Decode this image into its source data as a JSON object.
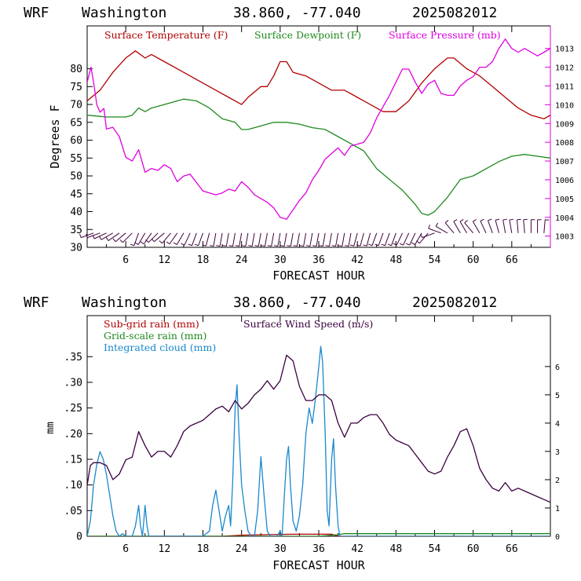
{
  "colors": {
    "temperature": "#b00000",
    "dewpoint": "#1e8a1e",
    "pressure": "#e000e0",
    "wind_barb": "#40003a",
    "subgrid_rain": "#b00000",
    "gridscale_rain": "#1e8a1e",
    "cloud": "#1a88cc",
    "wind_speed": "#3a0040",
    "axis": "#000000"
  },
  "chart_data": [
    {
      "type": "line",
      "title_model": "WRF",
      "title_location": "Washington",
      "title_coords": "38.860, -77.040",
      "title_date": "2025082012",
      "xlabel": "FORECAST HOUR",
      "ylabel": "Degrees F",
      "xlim": [
        0,
        72
      ],
      "ylim": [
        30,
        92
      ],
      "y2lim": [
        1002.4,
        1014.2
      ],
      "xticks": [
        "6",
        "12",
        "18",
        "24",
        "30",
        "36",
        "42",
        "48",
        "54",
        "60",
        "66"
      ],
      "yticks": [
        "30",
        "35",
        "40",
        "45",
        "50",
        "55",
        "60",
        "65",
        "70",
        "75",
        "80"
      ],
      "y2ticks": [
        "1003",
        "1004",
        "1005",
        "1006",
        "1007",
        "1008",
        "1009",
        "1010",
        "1011",
        "1012",
        "1013"
      ],
      "legend": [
        "Surface Temperature (F)",
        "Surface Dewpoint (F)",
        "Surface Pressure (mb)"
      ],
      "series": [
        {
          "name": "Surface Temperature (F)",
          "axis": "left",
          "x": [
            0,
            2,
            4,
            6,
            7.5,
            9,
            10,
            12,
            14,
            16,
            18,
            20,
            22,
            24,
            25,
            27,
            28,
            29,
            30,
            31,
            32,
            34,
            36,
            38,
            40,
            42,
            44,
            46,
            48,
            50,
            52,
            54,
            56,
            57,
            59,
            61,
            63,
            65,
            67,
            69,
            71,
            72
          ],
          "y": [
            71,
            74,
            79,
            83,
            85,
            83,
            84,
            82,
            80,
            78,
            76,
            74,
            72,
            70,
            72,
            75,
            75,
            78,
            82,
            82,
            79,
            78,
            76,
            74,
            74,
            72,
            70,
            68,
            68,
            71,
            76,
            80,
            83,
            83,
            80,
            78,
            75,
            72,
            69,
            67,
            66,
            67
          ]
        },
        {
          "name": "Surface Dewpoint (F)",
          "axis": "left",
          "x": [
            0,
            3,
            5,
            6,
            7,
            8,
            9,
            10,
            12,
            14,
            15,
            17,
            19,
            21,
            23,
            24,
            25,
            27,
            29,
            31,
            33,
            35,
            37,
            39,
            41,
            43,
            45,
            47,
            49,
            51,
            52,
            53,
            54,
            56,
            58,
            60,
            62,
            64,
            66,
            68,
            70,
            72
          ],
          "y": [
            67,
            66.5,
            66.5,
            66.5,
            67,
            69,
            68,
            69,
            70,
            71,
            71.5,
            71,
            69,
            66,
            65,
            63,
            63,
            64,
            65,
            65,
            64.5,
            63.5,
            63,
            61,
            59,
            57,
            52,
            49,
            46,
            42,
            39.5,
            39,
            40,
            44,
            49,
            50,
            52,
            54,
            55.5,
            56,
            55.5,
            55
          ]
        },
        {
          "name": "Surface Pressure (mb)",
          "axis": "right",
          "x": [
            0,
            0.6,
            1,
            1.5,
            2,
            2.6,
            3,
            4,
            5,
            6,
            7,
            8,
            9,
            10,
            11,
            12,
            13,
            14,
            15,
            16,
            18,
            19,
            20,
            21,
            22,
            23,
            24,
            25,
            26,
            27,
            28,
            29,
            30,
            31,
            32,
            33,
            34,
            35,
            36,
            37,
            38,
            39,
            40,
            41,
            42,
            43,
            44,
            45,
            46,
            47,
            48,
            49,
            50,
            51,
            52,
            53,
            54,
            55,
            56,
            57,
            58,
            59,
            60,
            61,
            62,
            63,
            64,
            65,
            66,
            67,
            68,
            69,
            70,
            71,
            72
          ],
          "y": [
            1011.2,
            1012,
            1011.2,
            1010,
            1009.6,
            1009.8,
            1008.7,
            1008.8,
            1008.3,
            1007.2,
            1007,
            1007.6,
            1006.4,
            1006.6,
            1006.5,
            1006.8,
            1006.6,
            1005.9,
            1006.2,
            1006.3,
            1005.4,
            1005.3,
            1005.2,
            1005.3,
            1005.5,
            1005.4,
            1005.9,
            1005.6,
            1005.2,
            1005,
            1004.8,
            1004.5,
            1004,
            1003.9,
            1004.4,
            1004.9,
            1005.3,
            1006,
            1006.5,
            1007.1,
            1007.4,
            1007.7,
            1007.3,
            1007.8,
            1007.9,
            1008,
            1008.5,
            1009.3,
            1009.9,
            1010.5,
            1011.2,
            1011.9,
            1011.9,
            1011.2,
            1010.6,
            1011.1,
            1011.3,
            1010.6,
            1010.5,
            1010.5,
            1011,
            1011.3,
            1011.5,
            1012,
            1012,
            1012.3,
            1013,
            1013.5,
            1013,
            1012.8,
            1013,
            1012.8,
            1012.6,
            1012.8,
            1013
          ]
        }
      ],
      "wind_barbs": {
        "x": [
          1,
          2,
          3,
          4,
          5,
          6,
          7,
          8,
          9,
          10,
          11,
          12,
          13,
          14,
          15,
          16,
          17,
          18,
          19,
          20,
          21,
          22,
          23,
          24,
          25,
          26,
          27,
          28,
          29,
          30,
          31,
          32,
          33,
          34,
          35,
          36,
          37,
          38,
          39,
          40,
          41,
          42,
          43,
          44,
          45,
          46,
          47,
          48,
          49,
          50,
          51,
          52,
          53,
          54,
          55,
          56,
          57,
          58,
          59,
          60,
          61,
          62,
          63,
          64,
          65,
          66,
          67,
          68,
          69,
          70,
          71
        ],
        "direction_deg": [
          250,
          250,
          245,
          240,
          235,
          230,
          225,
          200,
          210,
          215,
          225,
          230,
          220,
          215,
          210,
          205,
          200,
          200,
          195,
          190,
          190,
          190,
          190,
          190,
          190,
          190,
          190,
          190,
          190,
          190,
          190,
          190,
          190,
          190,
          190,
          190,
          190,
          190,
          190,
          190,
          190,
          195,
          195,
          195,
          200,
          200,
          200,
          200,
          205,
          205,
          205,
          210,
          220,
          250,
          290,
          300,
          320,
          330,
          330,
          320,
          330,
          335,
          340,
          345,
          350,
          350,
          355,
          355,
          0,
          0,
          5
        ]
      }
    },
    {
      "type": "line",
      "title_model": "WRF",
      "title_location": "Washington",
      "title_coords": "38.860, -77.040",
      "title_date": "2025082012",
      "xlabel": "FORECAST HOUR",
      "ylabel": "mm",
      "xlim": [
        0,
        72
      ],
      "ylim": [
        0,
        0.43
      ],
      "y2lim": [
        0,
        7.8
      ],
      "xticks": [
        "6",
        "12",
        "18",
        "24",
        "30",
        "36",
        "42",
        "48",
        "54",
        "60",
        "66"
      ],
      "yticks": [
        "0",
        ".05",
        ".10",
        ".15",
        ".20",
        ".25",
        ".30",
        ".35"
      ],
      "y2ticks": [
        "0",
        "1",
        "2",
        "3",
        "4",
        "5",
        "6"
      ],
      "legend": [
        "Sub-grid rain (mm)",
        "Grid-scale rain (mm)",
        "Integrated cloud (mm)",
        "Surface Wind Speed (m/s)"
      ],
      "series": [
        {
          "name": "Sub-grid rain (mm)",
          "axis": "left",
          "x": [
            0,
            21,
            24,
            28,
            32,
            36,
            38,
            39,
            72
          ],
          "y": [
            0,
            0,
            0.002,
            0.003,
            0.004,
            0.004,
            0.004,
            0,
            0
          ]
        },
        {
          "name": "Grid-scale rain (mm)",
          "axis": "left",
          "x": [
            0,
            36,
            39,
            40,
            72
          ],
          "y": [
            0,
            0,
            0.003,
            0.005,
            0.005
          ]
        },
        {
          "name": "Integrated cloud (mm)",
          "axis": "left",
          "x": [
            0,
            0.5,
            1,
            1.5,
            2,
            2.5,
            3,
            3.5,
            4,
            4.5,
            5,
            5.5,
            6,
            7,
            7.5,
            8,
            8.3,
            8.6,
            9,
            9.3,
            9.6,
            10,
            10.5,
            12,
            18,
            19,
            19.5,
            20,
            20.5,
            21,
            21.5,
            22,
            22.3,
            22.6,
            23,
            23.3,
            23.6,
            24,
            24.5,
            25,
            25.5,
            26,
            26.5,
            27,
            27.5,
            28,
            28.5,
            29,
            29.5,
            30,
            30.3,
            30.6,
            31,
            31.3,
            31.6,
            32,
            32.5,
            33,
            33.5,
            34,
            34.5,
            35,
            35.5,
            36,
            36.3,
            36.6,
            37,
            37.3,
            37.6,
            38,
            38.3,
            38.6,
            39,
            39.3,
            72
          ],
          "y": [
            0,
            0.03,
            0.1,
            0.14,
            0.165,
            0.15,
            0.12,
            0.08,
            0.04,
            0.01,
            0,
            0.005,
            0,
            0,
            0.02,
            0.06,
            0.02,
            0,
            0.06,
            0.02,
            0,
            0,
            0,
            0,
            0,
            0.01,
            0.06,
            0.09,
            0.05,
            0.01,
            0.04,
            0.06,
            0.02,
            0.1,
            0.25,
            0.295,
            0.2,
            0.1,
            0.05,
            0.01,
            0,
            0,
            0.05,
            0.155,
            0.08,
            0.01,
            0,
            0,
            0,
            0.01,
            0,
            0.07,
            0.15,
            0.175,
            0.1,
            0.03,
            0.01,
            0.04,
            0.1,
            0.2,
            0.25,
            0.22,
            0.27,
            0.33,
            0.37,
            0.34,
            0.2,
            0.05,
            0.02,
            0.15,
            0.19,
            0.1,
            0.02,
            0,
            0
          ]
        },
        {
          "name": "Surface Wind Speed (m/s)",
          "axis": "right",
          "x": [
            0,
            0.5,
            1,
            2,
            3,
            4,
            5,
            6,
            7,
            8,
            9,
            10,
            11,
            12,
            13,
            14,
            15,
            16,
            17,
            18,
            19,
            20,
            21,
            22,
            23,
            24,
            25,
            26,
            27,
            28,
            29,
            30,
            31,
            32,
            33,
            34,
            35,
            36,
            37,
            38,
            39,
            40,
            41,
            42,
            43,
            44,
            45,
            46,
            47,
            48,
            49,
            50,
            51,
            52,
            53,
            54,
            55,
            56,
            57,
            58,
            59,
            60,
            61,
            62,
            63,
            64,
            65,
            66,
            67,
            68,
            69,
            70,
            71,
            72
          ],
          "y": [
            1.8,
            2.5,
            2.6,
            2.6,
            2.5,
            2,
            2.2,
            2.7,
            2.8,
            3.7,
            3.2,
            2.8,
            3,
            3,
            2.8,
            3.2,
            3.7,
            3.9,
            4,
            4.1,
            4.3,
            4.5,
            4.6,
            4.4,
            4.8,
            4.5,
            4.7,
            5,
            5.2,
            5.5,
            5.2,
            5.5,
            6.4,
            6.2,
            5.3,
            4.8,
            4.8,
            5,
            5,
            4.8,
            4,
            3.5,
            4,
            4,
            4.2,
            4.3,
            4.3,
            4,
            3.6,
            3.4,
            3.3,
            3.2,
            2.9,
            2.6,
            2.3,
            2.2,
            2.3,
            2.8,
            3.2,
            3.7,
            3.8,
            3.2,
            2.4,
            2,
            1.7,
            1.6,
            1.9,
            1.6,
            1.7,
            1.6,
            1.5,
            1.4,
            1.3,
            1.2
          ]
        }
      ]
    }
  ]
}
